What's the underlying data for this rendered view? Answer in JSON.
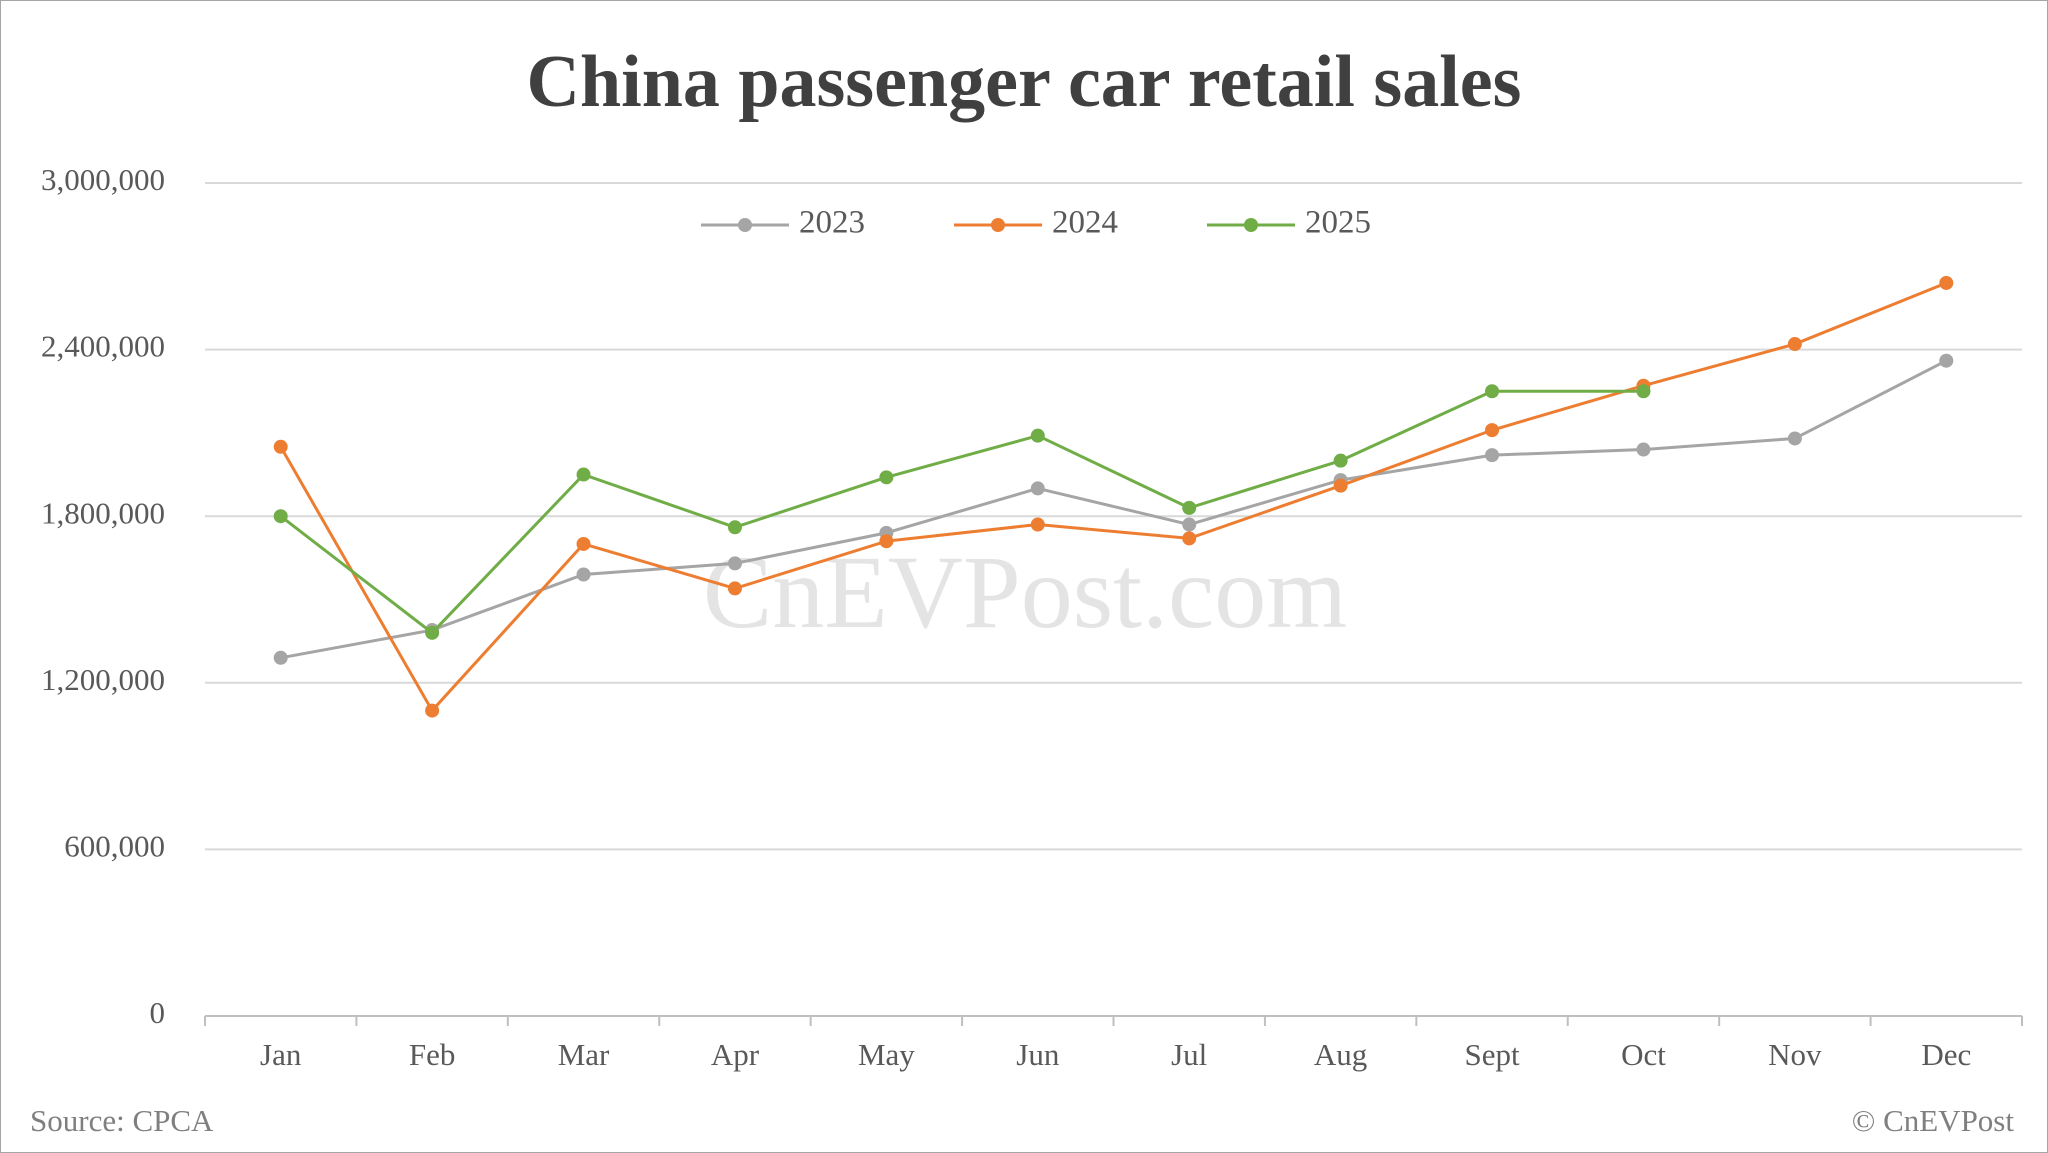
{
  "chart_data": {
    "type": "line",
    "title": "China passenger car retail sales",
    "watermark": "CnEVPost.com",
    "source": "Source: CPCA",
    "copyright": "© CnEVPost",
    "categories": [
      "Jan",
      "Feb",
      "Mar",
      "Apr",
      "May",
      "Jun",
      "Jul",
      "Aug",
      "Sept",
      "Oct",
      "Nov",
      "Dec"
    ],
    "series": [
      {
        "name": "2023",
        "color": "#a5a5a5",
        "values": [
          1290000,
          1390000,
          1590000,
          1630000,
          1740000,
          1900000,
          1770000,
          1930000,
          2020000,
          2040000,
          2080000,
          2360000
        ]
      },
      {
        "name": "2024",
        "color": "#ed7d31",
        "values": [
          2050000,
          1100000,
          1700000,
          1540000,
          1710000,
          1770000,
          1720000,
          1910000,
          2110000,
          2270000,
          2420000,
          2640000
        ]
      },
      {
        "name": "2025",
        "color": "#70ad47",
        "values": [
          1800000,
          1380000,
          1950000,
          1760000,
          1940000,
          2090000,
          1830000,
          2000000,
          2250000,
          2250000,
          null,
          null
        ]
      }
    ],
    "ylim": [
      0,
      3000000
    ],
    "yticks": [
      0,
      {
        "value": 600000,
        "label": "600,000"
      },
      {
        "value": 1200000,
        "label": "1,200,000"
      },
      {
        "value": 1800000,
        "label": "1,800,000"
      },
      {
        "value": 2400000,
        "label": "2,400,000"
      },
      {
        "value": 3000000,
        "label": "3,000,000"
      }
    ],
    "grid": true,
    "legend": "top"
  }
}
